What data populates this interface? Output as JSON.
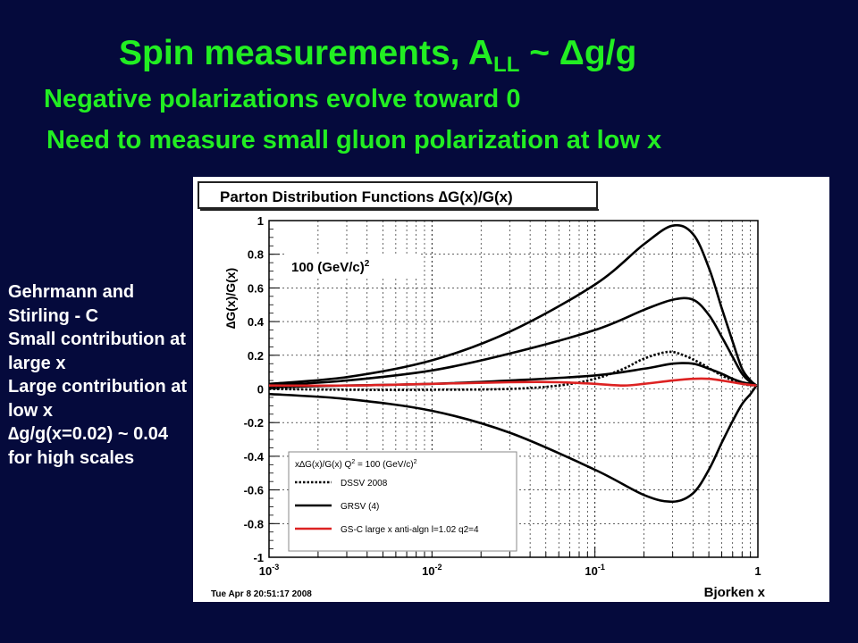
{
  "slide": {
    "title_main": "Spin measurements, A",
    "title_sub": "LL",
    "title_tail": " ~ Δg/g",
    "subtitle_1": "Negative polarizations evolve toward 0",
    "subtitle_2": "Need to measure small gluon polarization at low x"
  },
  "notes": [
    "Gehrmann and Stirling - C",
    "Small contribution at large x",
    "Large contribution at low x",
    "∆g/g(x=0.02) ~ 0.04 for high scales"
  ],
  "chart_data": {
    "type": "line",
    "title": "Parton Distribution Functions ∆G(x)/G(x)",
    "xlabel": "Bjorken x",
    "ylabel": "∆G(x)/G(x)",
    "x_scale": "log",
    "xlim": [
      0.001,
      1
    ],
    "ylim": [
      -1,
      1
    ],
    "x_ticks": [
      {
        "value": 0.001,
        "base": "10",
        "exp": "-3"
      },
      {
        "value": 0.01,
        "base": "10",
        "exp": "-2"
      },
      {
        "value": 0.1,
        "base": "10",
        "exp": "-1"
      },
      {
        "value": 1,
        "base": "1",
        "exp": ""
      }
    ],
    "y_ticks": [
      1,
      0.8,
      0.6,
      0.4,
      0.2,
      0,
      -0.2,
      -0.4,
      -0.6,
      -0.8,
      -1
    ],
    "annotation_text": "100 (GeV/c)",
    "annotation_exp": "2",
    "timestamp": "Tue Apr  8 20:51:17 2008",
    "legend": {
      "placement": "bottom-right",
      "header_main": "x∆G(x)/G(x)  Q",
      "header_exp1": "2",
      "header_mid": " = 100 (GeV/c)",
      "header_exp2": "2"
    },
    "series": [
      {
        "name": "DSSV 2008",
        "style": "dotted",
        "color": "#000000",
        "points": [
          [
            0.001,
            0.0
          ],
          [
            0.003,
            -0.005
          ],
          [
            0.01,
            -0.005
          ],
          [
            0.03,
            0.0
          ],
          [
            0.06,
            0.02
          ],
          [
            0.1,
            0.06
          ],
          [
            0.15,
            0.12
          ],
          [
            0.2,
            0.18
          ],
          [
            0.28,
            0.22
          ],
          [
            0.35,
            0.2
          ],
          [
            0.45,
            0.15
          ],
          [
            0.6,
            0.08
          ],
          [
            0.8,
            0.03
          ],
          [
            0.98,
            0.02
          ]
        ]
      },
      {
        "name": "GRSV (4)",
        "style": "solid",
        "color": "#000000",
        "points": [
          [
            0.001,
            0.03
          ],
          [
            0.003,
            0.07
          ],
          [
            0.01,
            0.17
          ],
          [
            0.03,
            0.34
          ],
          [
            0.1,
            0.62
          ],
          [
            0.2,
            0.86
          ],
          [
            0.3,
            0.97
          ],
          [
            0.4,
            0.92
          ],
          [
            0.5,
            0.72
          ],
          [
            0.6,
            0.48
          ],
          [
            0.7,
            0.28
          ],
          [
            0.8,
            0.12
          ],
          [
            0.9,
            0.05
          ],
          [
            0.98,
            0.02
          ]
        ]
      },
      {
        "name": "",
        "style": "solid",
        "color": "#000000",
        "points": [
          [
            0.001,
            0.02
          ],
          [
            0.003,
            0.05
          ],
          [
            0.01,
            0.11
          ],
          [
            0.03,
            0.21
          ],
          [
            0.1,
            0.35
          ],
          [
            0.2,
            0.47
          ],
          [
            0.3,
            0.53
          ],
          [
            0.4,
            0.53
          ],
          [
            0.5,
            0.44
          ],
          [
            0.6,
            0.31
          ],
          [
            0.7,
            0.19
          ],
          [
            0.8,
            0.09
          ],
          [
            0.9,
            0.04
          ],
          [
            0.98,
            0.02
          ]
        ]
      },
      {
        "name": "",
        "style": "solid",
        "color": "#000000",
        "points": [
          [
            0.001,
            0.01
          ],
          [
            0.003,
            0.02
          ],
          [
            0.01,
            0.03
          ],
          [
            0.03,
            0.05
          ],
          [
            0.1,
            0.08
          ],
          [
            0.2,
            0.12
          ],
          [
            0.3,
            0.15
          ],
          [
            0.4,
            0.15
          ],
          [
            0.5,
            0.12
          ],
          [
            0.6,
            0.09
          ],
          [
            0.7,
            0.06
          ],
          [
            0.8,
            0.04
          ],
          [
            0.9,
            0.03
          ],
          [
            0.98,
            0.02
          ]
        ]
      },
      {
        "name": "",
        "style": "solid",
        "color": "#000000",
        "points": [
          [
            0.001,
            -0.03
          ],
          [
            0.003,
            -0.06
          ],
          [
            0.01,
            -0.13
          ],
          [
            0.03,
            -0.26
          ],
          [
            0.1,
            -0.48
          ],
          [
            0.2,
            -0.63
          ],
          [
            0.3,
            -0.67
          ],
          [
            0.4,
            -0.62
          ],
          [
            0.5,
            -0.48
          ],
          [
            0.6,
            -0.32
          ],
          [
            0.7,
            -0.19
          ],
          [
            0.8,
            -0.09
          ],
          [
            0.9,
            -0.03
          ],
          [
            0.98,
            0.02
          ]
        ]
      },
      {
        "name": "GS-C large x anti-algn l=1.02 q2=4",
        "style": "solid",
        "color": "#dd2222",
        "points": [
          [
            0.001,
            0.02
          ],
          [
            0.003,
            0.02
          ],
          [
            0.01,
            0.03
          ],
          [
            0.03,
            0.04
          ],
          [
            0.06,
            0.04
          ],
          [
            0.1,
            0.03
          ],
          [
            0.15,
            0.02
          ],
          [
            0.2,
            0.03
          ],
          [
            0.3,
            0.05
          ],
          [
            0.4,
            0.06
          ],
          [
            0.5,
            0.06
          ],
          [
            0.6,
            0.05
          ],
          [
            0.8,
            0.03
          ],
          [
            0.98,
            0.02
          ]
        ]
      }
    ]
  }
}
